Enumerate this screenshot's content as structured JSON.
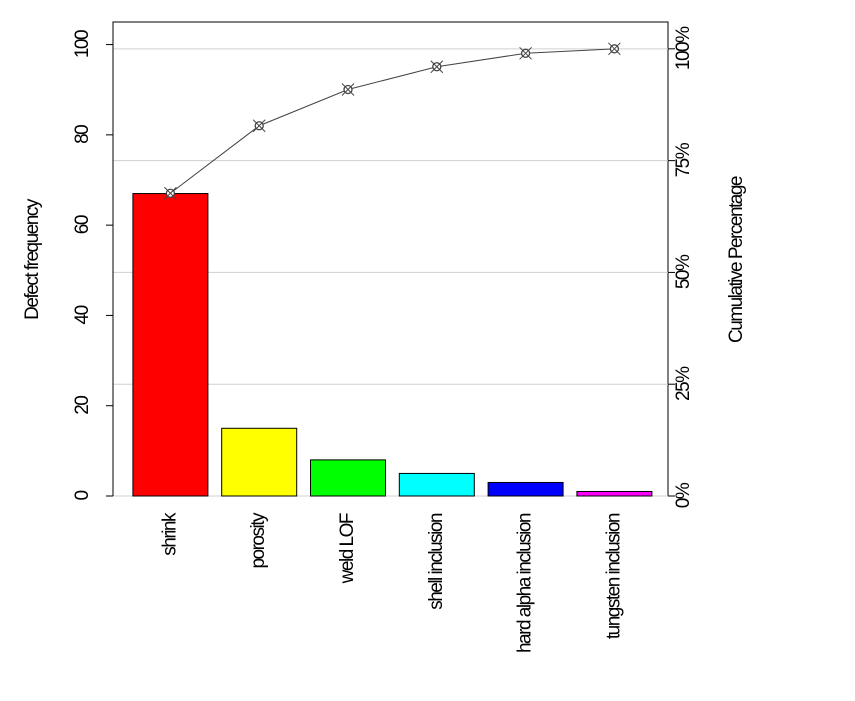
{
  "chart_data": {
    "type": "pareto",
    "y_label": "Defect frequency",
    "y2_label": "Cumulative Percentage",
    "categories": [
      "shrink",
      "porosity",
      "weld LOF",
      "shell inclusion",
      "hard alpha inclusion",
      "tungsten inclusion"
    ],
    "series": [
      {
        "name": "Defect frequency",
        "type": "bar",
        "colors": [
          "#ff0000",
          "#ffff00",
          "#00ff00",
          "#00ffff",
          "#0000ff",
          "#ff00ff"
        ],
        "values": [
          67,
          15,
          8,
          5,
          3,
          1
        ]
      },
      {
        "name": "Cumulative Percentage",
        "type": "line",
        "axis": "y2",
        "color": "#444444",
        "values": [
          67.7,
          82.8,
          90.9,
          96.0,
          99.0,
          100
        ]
      }
    ],
    "ylim": [
      0,
      105
    ],
    "yticks": [
      0,
      20,
      40,
      60,
      80,
      100
    ],
    "y2lim": [
      0,
      106
    ],
    "y2ticks": [
      {
        "value": 0,
        "label": "0%"
      },
      {
        "value": 25,
        "label": "25%"
      },
      {
        "value": 50,
        "label": "50%"
      },
      {
        "value": 75,
        "label": "75%"
      },
      {
        "value": 100,
        "label": "100%"
      }
    ],
    "grid": true
  }
}
